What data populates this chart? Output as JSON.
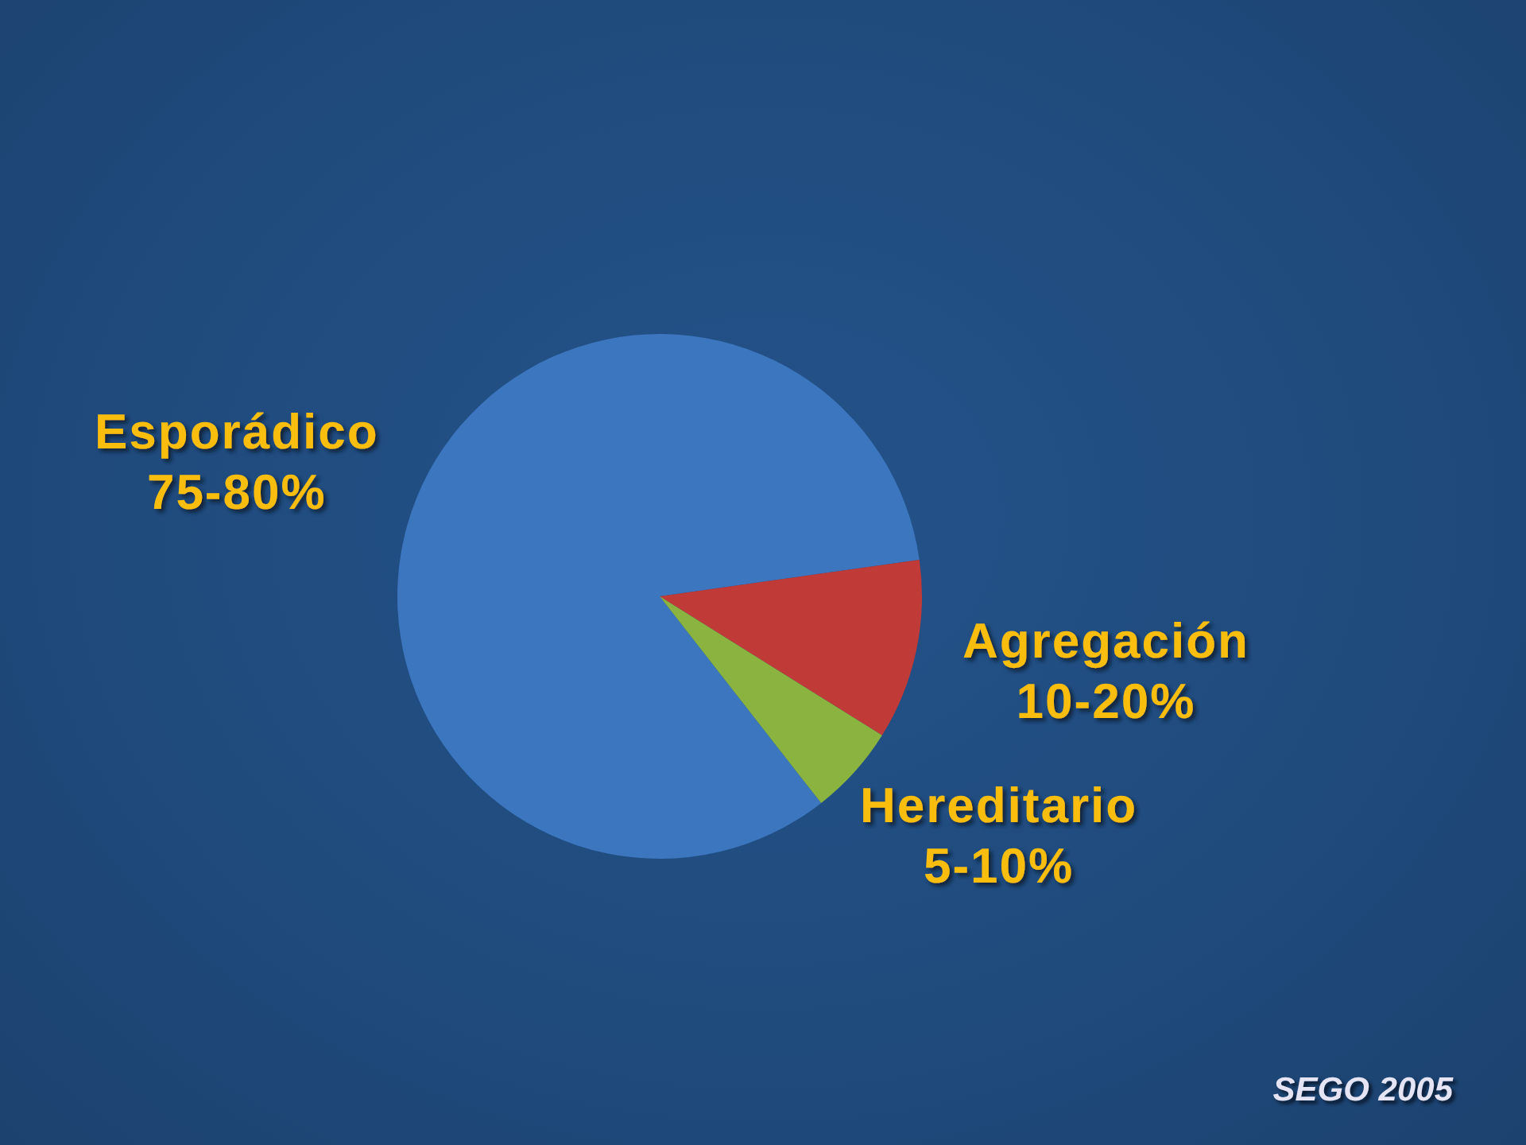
{
  "chart_data": {
    "type": "pie",
    "categories": [
      "Esporádico",
      "Agregación",
      "Hereditario"
    ],
    "values": [
      75,
      10,
      5
    ],
    "colors": [
      "#3b76bf",
      "#c03a38",
      "#8ab43f"
    ],
    "value_labels": [
      "75-80%",
      "10-20%",
      "5-10%"
    ],
    "annotations": [
      "SEGO 2005"
    ]
  }
}
